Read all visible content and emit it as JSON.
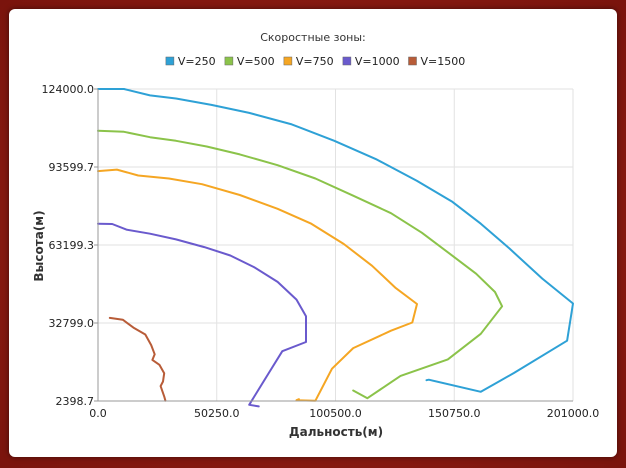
{
  "chart_data": {
    "type": "line",
    "title": "Скоростные зоны:",
    "xlabel": "Дальность(м)",
    "ylabel": "Высота(м)",
    "xlim": [
      0,
      201000
    ],
    "ylim": [
      2398.7,
      124000
    ],
    "x_ticks": [
      "0.0",
      "50250.0",
      "100500.0",
      "150750.0",
      "201000.0"
    ],
    "y_ticks": [
      "2398.7",
      "32799.0",
      "63199.3",
      "93599.7",
      "124000.0"
    ],
    "grid": true,
    "legend_position": "top",
    "series": [
      {
        "name": "V=250",
        "color": "#2ea1d6",
        "points": [
          [
            0,
            124000
          ],
          [
            11000,
            124000
          ],
          [
            22000,
            121500
          ],
          [
            33000,
            120300
          ],
          [
            48000,
            117800
          ],
          [
            64000,
            114700
          ],
          [
            82000,
            110200
          ],
          [
            100000,
            103800
          ],
          [
            118000,
            96500
          ],
          [
            135000,
            88200
          ],
          [
            150000,
            80000
          ],
          [
            162000,
            71500
          ],
          [
            174000,
            61900
          ],
          [
            188000,
            50100
          ],
          [
            201000,
            40400
          ],
          [
            198500,
            25900
          ],
          [
            176000,
            13300
          ],
          [
            162000,
            6000
          ],
          [
            140000,
            10700
          ],
          [
            139000,
            10500
          ]
        ]
      },
      {
        "name": "V=500",
        "color": "#8bc34a",
        "points": [
          [
            0,
            107700
          ],
          [
            11000,
            107300
          ],
          [
            22000,
            105200
          ],
          [
            33000,
            103800
          ],
          [
            46000,
            101600
          ],
          [
            60000,
            98500
          ],
          [
            76000,
            94300
          ],
          [
            92000,
            89100
          ],
          [
            108000,
            82400
          ],
          [
            124000,
            75600
          ],
          [
            137000,
            68000
          ],
          [
            150000,
            59000
          ],
          [
            160000,
            52000
          ],
          [
            168000,
            44900
          ],
          [
            171000,
            39300
          ],
          [
            162000,
            28600
          ],
          [
            148000,
            18600
          ],
          [
            128000,
            12200
          ],
          [
            114000,
            3500
          ],
          [
            108000,
            6500
          ]
        ]
      },
      {
        "name": "V=750",
        "color": "#f5a623",
        "points": [
          [
            0,
            92000
          ],
          [
            8000,
            92600
          ],
          [
            17000,
            90300
          ],
          [
            30000,
            89100
          ],
          [
            44000,
            86900
          ],
          [
            60000,
            82700
          ],
          [
            76000,
            77300
          ],
          [
            90000,
            71600
          ],
          [
            104000,
            63600
          ],
          [
            116000,
            55100
          ],
          [
            126000,
            46400
          ],
          [
            135000,
            40200
          ],
          [
            133000,
            33000
          ],
          [
            124000,
            29800
          ],
          [
            108000,
            23000
          ],
          [
            99000,
            15000
          ],
          [
            92000,
            2500
          ],
          [
            84000,
            2700
          ],
          [
            85000,
            3100
          ]
        ]
      },
      {
        "name": "V=1000",
        "color": "#6a5acd",
        "points": [
          [
            0,
            71500
          ],
          [
            6000,
            71400
          ],
          [
            12000,
            69200
          ],
          [
            22000,
            67600
          ],
          [
            33000,
            65400
          ],
          [
            45000,
            62400
          ],
          [
            56000,
            59100
          ],
          [
            66000,
            54600
          ],
          [
            76000,
            48800
          ],
          [
            84000,
            41900
          ],
          [
            88000,
            35400
          ],
          [
            88000,
            25400
          ],
          [
            78000,
            21800
          ],
          [
            72000,
            12900
          ],
          [
            64000,
            900
          ],
          [
            68000,
            300
          ]
        ]
      },
      {
        "name": "V=1500",
        "color": "#b85c38",
        "points": [
          [
            5000,
            34800
          ],
          [
            10500,
            34100
          ],
          [
            15000,
            31000
          ],
          [
            20000,
            28300
          ],
          [
            22500,
            24200
          ],
          [
            24000,
            20600
          ],
          [
            23000,
            18400
          ],
          [
            26000,
            16500
          ],
          [
            28000,
            13200
          ],
          [
            27500,
            10000
          ],
          [
            26500,
            8200
          ],
          [
            28000,
            4200
          ],
          [
            28500,
            2500
          ]
        ]
      }
    ]
  }
}
